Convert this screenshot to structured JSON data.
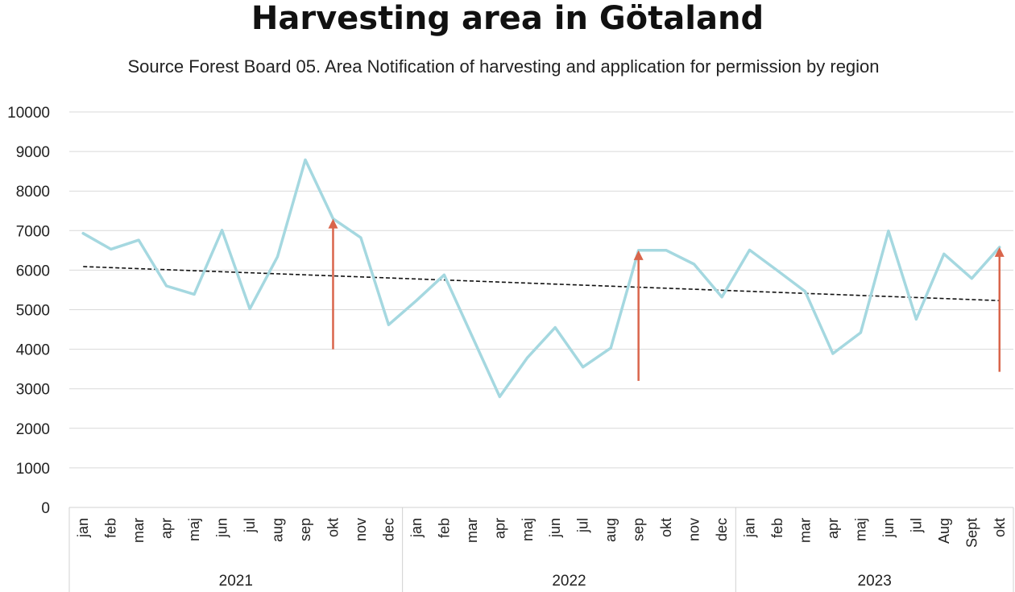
{
  "chart_data": {
    "type": "line",
    "title": "Harvesting area in Götaland",
    "subtitle": "Source Forest Board 05. Area Notification of harvesting and application for permission by region",
    "ylim": [
      0,
      10000
    ],
    "yticks": [
      0,
      1000,
      2000,
      3000,
      4000,
      5000,
      6000,
      7000,
      8000,
      9000,
      10000
    ],
    "grid": true,
    "categories": [
      "jan",
      "feb",
      "mar",
      "apr",
      "maj",
      "jun",
      "jul",
      "aug",
      "sep",
      "okt",
      "nov",
      "dec",
      "jan",
      "feb",
      "mar",
      "apr",
      "maj",
      "jun",
      "jul",
      "aug",
      "sep",
      "okt",
      "nov",
      "dec",
      "jan",
      "feb",
      "mar",
      "apr",
      "maj",
      "jun",
      "jul",
      "Aug",
      "Sept",
      "okt"
    ],
    "groups": [
      {
        "label": "2021",
        "count": 12
      },
      {
        "label": "2022",
        "count": 12
      },
      {
        "label": "2023",
        "count": 10
      }
    ],
    "series": [
      {
        "values": [
          6930,
          6530,
          6760,
          5600,
          5390,
          7010,
          5020,
          6340,
          8790,
          7300,
          6820,
          4620,
          5230,
          5880,
          4340,
          2800,
          3790,
          4550,
          3550,
          4030,
          6500,
          6500,
          6150,
          5320,
          6510,
          5990,
          5460,
          3890,
          4420,
          6990,
          4760,
          6410,
          5790,
          6580
        ],
        "color": "#a5d8e0"
      }
    ],
    "trendline": {
      "start": 6090,
      "end": 5230,
      "color": "#111111",
      "style": "dashed"
    },
    "arrows": [
      {
        "index": 9,
        "from": 4000,
        "to": 7300,
        "color": "#d9654b"
      },
      {
        "index": 20,
        "from": 3200,
        "to": 6500,
        "color": "#d9654b"
      },
      {
        "index": 33,
        "from": 3430,
        "to": 6580,
        "color": "#d9654b"
      }
    ]
  }
}
